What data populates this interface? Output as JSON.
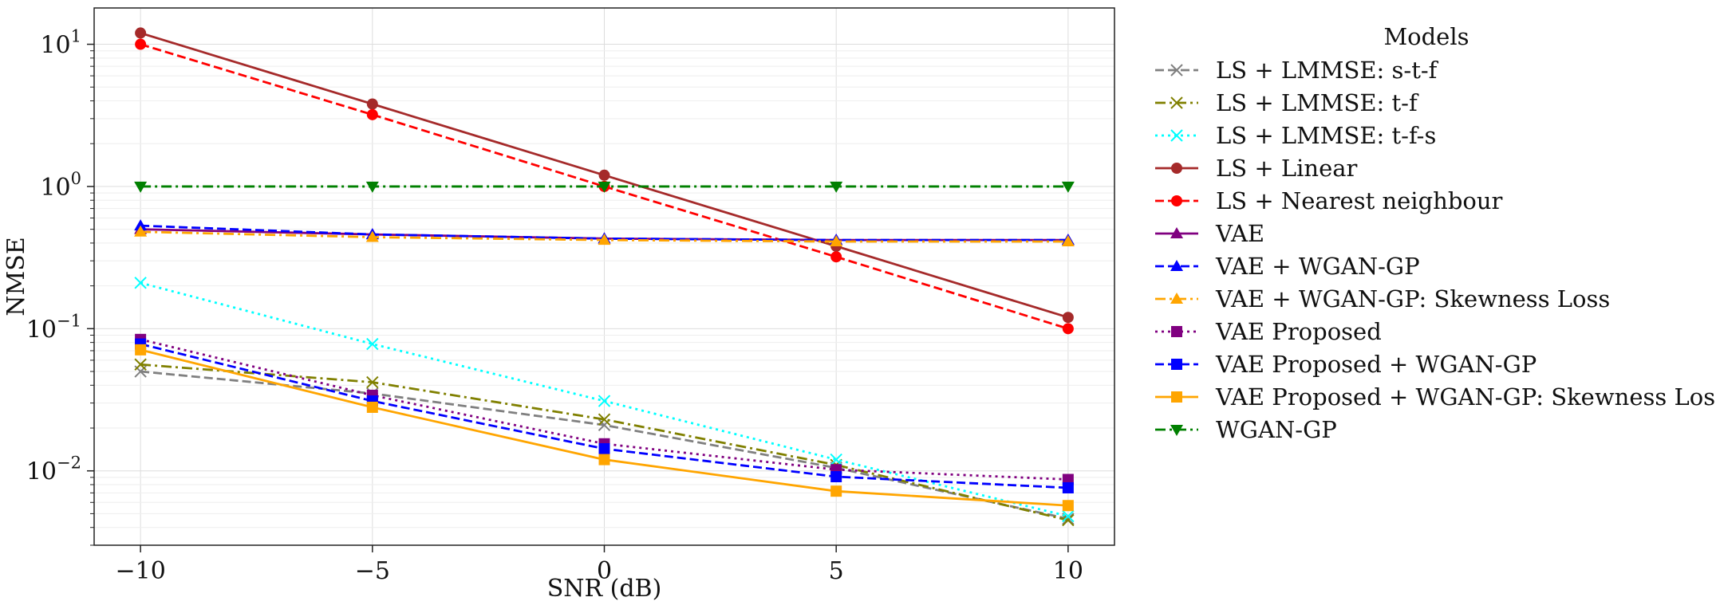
{
  "chart_data": {
    "type": "line",
    "title": "",
    "xlabel": "SNR (dB)",
    "ylabel": "NMSE",
    "x": [
      -10,
      -5,
      0,
      5,
      10
    ],
    "x_ticks": [
      -10,
      -5,
      0,
      5,
      10
    ],
    "x_tick_labels": [
      "−10",
      "−5",
      "0",
      "5",
      "10"
    ],
    "xlim": [
      -11,
      11
    ],
    "yscale": "log",
    "ylim": [
      0.003,
      18
    ],
    "y_ticks": [
      0.01,
      0.1,
      1,
      10
    ],
    "y_tick_labels": [
      {
        "base": "10",
        "exp": "−2"
      },
      {
        "base": "10",
        "exp": "−1"
      },
      {
        "base": "10",
        "exp": "0"
      },
      {
        "base": "10",
        "exp": "1"
      }
    ],
    "grid": true,
    "legend_title": "Models",
    "legend_position": "outside-right",
    "series": [
      {
        "name": "LS + LMMSE: s-t-f",
        "color": "#808080",
        "linestyle": "dashed",
        "marker": "x",
        "values": [
          0.05,
          0.035,
          0.021,
          0.0105,
          0.0046
        ]
      },
      {
        "name": "LS + LMMSE: t-f",
        "color": "#808000",
        "linestyle": "dashdot",
        "marker": "x",
        "values": [
          0.056,
          0.042,
          0.023,
          0.011,
          0.0045
        ]
      },
      {
        "name": "LS + LMMSE: t-f-s",
        "color": "#00ffff",
        "linestyle": "dotted",
        "marker": "x",
        "values": [
          0.21,
          0.078,
          0.031,
          0.012,
          0.0048
        ]
      },
      {
        "name": "LS + Linear",
        "color": "#a52a2a",
        "linestyle": "solid",
        "marker": "circle",
        "values": [
          12,
          3.8,
          1.2,
          0.38,
          0.12
        ]
      },
      {
        "name": "LS + Nearest neighbour",
        "color": "#ff0000",
        "linestyle": "dashed",
        "marker": "circle",
        "values": [
          10,
          3.2,
          1.0,
          0.32,
          0.1
        ]
      },
      {
        "name": "VAE",
        "color": "#800080",
        "linestyle": "solid",
        "marker": "triangle-up",
        "values": [
          0.5,
          0.46,
          0.43,
          0.42,
          0.42
        ]
      },
      {
        "name": "VAE + WGAN-GP",
        "color": "#0000ff",
        "linestyle": "dashed",
        "marker": "triangle-up",
        "values": [
          0.53,
          0.46,
          0.43,
          0.42,
          0.42
        ]
      },
      {
        "name": "VAE + WGAN-GP: Skewness Loss",
        "color": "#ffa500",
        "linestyle": "dashdot",
        "marker": "triangle-up",
        "values": [
          0.48,
          0.44,
          0.42,
          0.41,
          0.41
        ]
      },
      {
        "name": "VAE Proposed",
        "color": "#800080",
        "linestyle": "dotted",
        "marker": "square",
        "values": [
          0.084,
          0.034,
          0.0155,
          0.0102,
          0.0087
        ]
      },
      {
        "name": "VAE Proposed + WGAN-GP",
        "color": "#0000ff",
        "linestyle": "dashed",
        "marker": "square",
        "values": [
          0.078,
          0.031,
          0.0143,
          0.0091,
          0.0076
        ]
      },
      {
        "name": "VAE Proposed + WGAN-GP: Skewness Loss",
        "color": "#ffa500",
        "linestyle": "solid",
        "marker": "square",
        "values": [
          0.071,
          0.028,
          0.012,
          0.0072,
          0.0057
        ]
      },
      {
        "name": "WGAN-GP",
        "color": "#008000",
        "linestyle": "dashdot",
        "marker": "triangle-down",
        "values": [
          1.0,
          1.0,
          1.0,
          1.0,
          1.0
        ]
      }
    ]
  }
}
